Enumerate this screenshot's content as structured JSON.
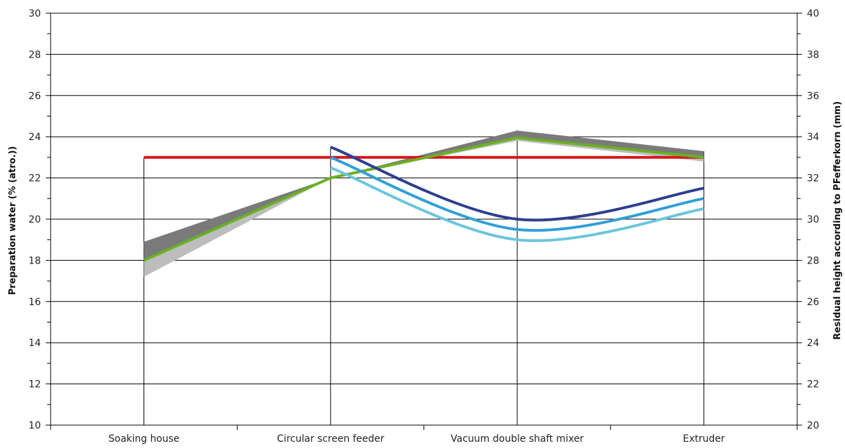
{
  "chart_data": {
    "type": "line",
    "title": "",
    "categories": [
      "Soaking house",
      "Circular screen feeder",
      "Vacuum double shaft mixer",
      "Extruder"
    ],
    "y_left": {
      "label": "Preparation water (% (atro.))",
      "range": [
        10,
        30
      ],
      "ticks": [
        "10",
        "12",
        "14",
        "16",
        "18",
        "20",
        "22",
        "24",
        "26",
        "28",
        "30"
      ]
    },
    "y_right": {
      "label": "Residual height according to PFefferkorn (mm)",
      "range": [
        20,
        40
      ],
      "ticks": [
        "20",
        "22",
        "24",
        "26",
        "28",
        "30",
        "32",
        "34",
        "36",
        "38",
        "40"
      ]
    },
    "grid": true,
    "legend": "none",
    "bands": [
      {
        "axis": "left",
        "color": "#7a7a7a",
        "upper": [
          18.9,
          22.0,
          24.3,
          23.3
        ],
        "lower": [
          18.0,
          22.0,
          24.0,
          23.0
        ]
      },
      {
        "axis": "left",
        "color": "#bdbdbd",
        "upper": [
          18.0,
          22.0,
          24.0,
          23.0
        ],
        "lower": [
          17.2,
          22.0,
          23.8,
          22.8
        ]
      }
    ],
    "series": [
      {
        "axis": "left",
        "color": "#d7191c",
        "x": [
          0,
          3
        ],
        "values": [
          23.0,
          23.0
        ]
      },
      {
        "axis": "left",
        "color": "#6ab023",
        "x": [
          0,
          1,
          2,
          3
        ],
        "values": [
          18.0,
          22.0,
          23.95,
          23.0
        ]
      },
      {
        "axis": "right",
        "color": "#2e3f8f",
        "x": [
          1,
          2,
          3
        ],
        "values": [
          33.5,
          30.0,
          31.5
        ]
      },
      {
        "axis": "right",
        "color": "#2f9fd8",
        "x": [
          1,
          2,
          3
        ],
        "values": [
          33.0,
          29.5,
          31.0
        ]
      },
      {
        "axis": "right",
        "color": "#6cc5dd",
        "x": [
          1,
          2,
          3
        ],
        "values": [
          32.5,
          29.0,
          30.5
        ]
      }
    ]
  }
}
